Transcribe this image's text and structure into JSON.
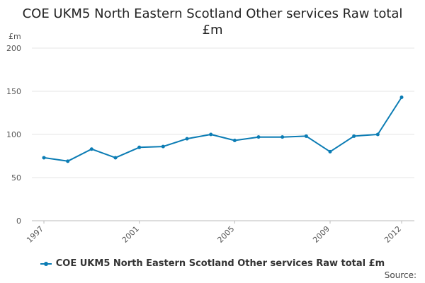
{
  "chart_data": {
    "type": "line",
    "title": "COE UKM5 North Eastern Scotland Other services Raw total £m",
    "unit_label": "£m",
    "x": [
      1997,
      1998,
      1999,
      2000,
      2001,
      2002,
      2003,
      2004,
      2005,
      2006,
      2007,
      2008,
      2009,
      2010,
      2011,
      2012
    ],
    "x_tick_labels": [
      "1997",
      "2001",
      "2005",
      "2009",
      "2012"
    ],
    "y_ticks": [
      0,
      50,
      100,
      150,
      200
    ],
    "ylim": [
      0,
      200
    ],
    "grid": true,
    "series": [
      {
        "name": "COE UKM5 North Eastern Scotland Other services Raw total £m",
        "color": "#0b7cb4",
        "values": [
          73,
          69,
          83,
          73,
          85,
          86,
          95,
          100,
          93,
          97,
          97,
          98,
          80,
          98,
          100,
          143
        ]
      }
    ],
    "legend_position": "bottom",
    "source_label": "Source:"
  }
}
